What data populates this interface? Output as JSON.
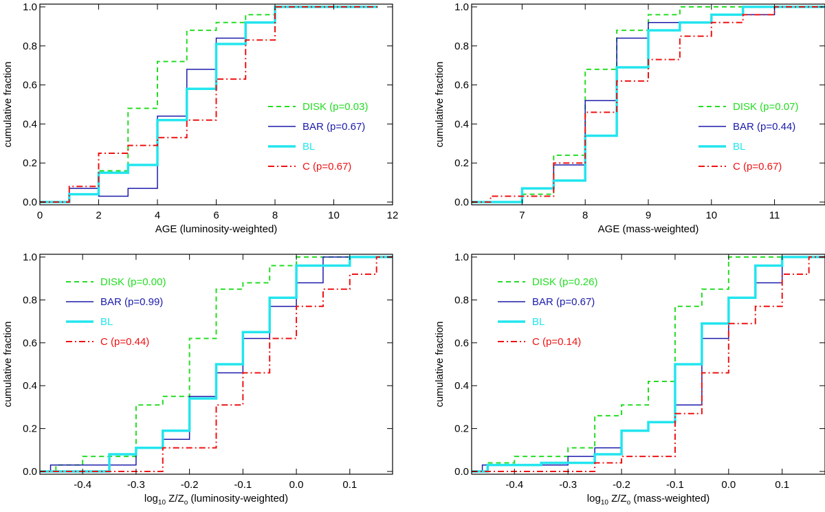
{
  "colors": {
    "disk": "#22dd22",
    "bar": "#1a1aaa",
    "bl": "#22e5ee",
    "c": "#ee1111",
    "axis": "#000000"
  },
  "chart_data": [
    {
      "type": "line",
      "step": true,
      "xlabel": "AGE (luminosity-weighted)",
      "ylabel": "cumulative fraction",
      "xlim": [
        0,
        12
      ],
      "ylim": [
        0,
        1
      ],
      "xticks": [
        0,
        2,
        4,
        6,
        8,
        10,
        12
      ],
      "xtick_labels": [
        "0",
        "2",
        "4",
        "6",
        "8",
        "10",
        "12"
      ],
      "yticks": [
        0,
        0.2,
        0.4,
        0.6,
        0.8,
        1.0
      ],
      "ytick_labels": [
        "0.0",
        "0.2",
        "0.4",
        "0.6",
        "0.8",
        "1.0"
      ],
      "legend_position": "middle-right",
      "series": [
        {
          "key": "disk",
          "name": "DISK (p=0.03)",
          "x": [
            0,
            1,
            1,
            2,
            2,
            3,
            3,
            4,
            4,
            5,
            5,
            6,
            6,
            7,
            7,
            8,
            8,
            11.5
          ],
          "y": [
            0,
            0,
            0.04,
            0.04,
            0.16,
            0.16,
            0.48,
            0.48,
            0.72,
            0.72,
            0.88,
            0.88,
            0.92,
            0.92,
            0.96,
            0.96,
            1.0,
            1.0
          ]
        },
        {
          "key": "bar",
          "name": "BAR (p=0.67)",
          "x": [
            0,
            1,
            1,
            2,
            2,
            3,
            3,
            4,
            4,
            5,
            5,
            6,
            6,
            7,
            7,
            8,
            8,
            11.5
          ],
          "y": [
            0,
            0,
            0.07,
            0.07,
            0.03,
            0.03,
            0.07,
            0.07,
            0.44,
            0.44,
            0.68,
            0.68,
            0.84,
            0.84,
            0.92,
            0.92,
            1.0,
            1.0
          ]
        },
        {
          "key": "bl",
          "name": "BL",
          "x": [
            0,
            1,
            1,
            2,
            2,
            3,
            3,
            4,
            4,
            5,
            5,
            6,
            6,
            7,
            7,
            8,
            8,
            11.5
          ],
          "y": [
            0,
            0,
            0.04,
            0.04,
            0.15,
            0.15,
            0.19,
            0.19,
            0.42,
            0.42,
            0.58,
            0.58,
            0.81,
            0.81,
            0.92,
            0.92,
            1.0,
            1.0
          ]
        },
        {
          "key": "c",
          "name": "C (p=0.67)",
          "x": [
            0,
            1,
            1,
            2,
            2,
            3,
            3,
            4,
            4,
            5,
            5,
            6,
            6,
            7,
            7,
            8,
            8,
            11.5
          ],
          "y": [
            0,
            0,
            0.08,
            0.08,
            0.25,
            0.25,
            0.29,
            0.29,
            0.33,
            0.33,
            0.42,
            0.42,
            0.63,
            0.63,
            0.83,
            0.83,
            1.0,
            1.0
          ]
        }
      ]
    },
    {
      "type": "line",
      "step": true,
      "xlabel": "AGE (mass-weighted)",
      "ylabel": "cumulative fraction",
      "xlim": [
        6.2,
        11.8
      ],
      "ylim": [
        0,
        1
      ],
      "xticks": [
        7,
        8,
        9,
        10,
        11
      ],
      "xtick_labels": [
        "7",
        "8",
        "9",
        "10",
        "11"
      ],
      "yticks": [
        0,
        0.2,
        0.4,
        0.6,
        0.8,
        1.0
      ],
      "ytick_labels": [
        "0.0",
        "0.2",
        "0.4",
        "0.6",
        "0.8",
        "1.0"
      ],
      "legend_position": "middle-right",
      "series": [
        {
          "key": "disk",
          "name": "DISK (p=0.07)",
          "x": [
            6.2,
            7,
            7,
            7.5,
            7.5,
            8,
            8,
            8.5,
            8.5,
            9,
            9,
            9.5,
            9.5,
            11.8
          ],
          "y": [
            0,
            0,
            0.04,
            0.04,
            0.24,
            0.24,
            0.68,
            0.68,
            0.88,
            0.88,
            0.96,
            0.96,
            1.0,
            1.0
          ]
        },
        {
          "key": "bar",
          "name": "BAR (p=0.44)",
          "x": [
            6.2,
            7,
            7,
            7.5,
            7.5,
            8,
            8,
            8.5,
            8.5,
            9,
            9,
            10,
            10,
            11,
            11,
            11.8
          ],
          "y": [
            0,
            0,
            0.07,
            0.07,
            0.19,
            0.19,
            0.52,
            0.52,
            0.84,
            0.84,
            0.92,
            0.92,
            0.96,
            0.96,
            1.0,
            1.0
          ]
        },
        {
          "key": "bl",
          "name": "BL",
          "x": [
            6.2,
            7,
            7,
            7.5,
            7.5,
            8,
            8,
            8.5,
            8.5,
            9,
            9,
            9.5,
            9.5,
            10,
            10,
            10.5,
            10.5,
            11.8
          ],
          "y": [
            0,
            0,
            0.07,
            0.07,
            0.11,
            0.11,
            0.34,
            0.34,
            0.69,
            0.69,
            0.88,
            0.88,
            0.92,
            0.92,
            0.96,
            0.96,
            1.0,
            1.0
          ]
        },
        {
          "key": "c",
          "name": "C (p=0.67)",
          "x": [
            6.2,
            6.5,
            6.5,
            7.5,
            7.5,
            8,
            8,
            8.5,
            8.5,
            9,
            9,
            9.5,
            9.5,
            10,
            10,
            10.5,
            10.5,
            11,
            11,
            11.8
          ],
          "y": [
            0,
            0,
            0.03,
            0.03,
            0.2,
            0.2,
            0.46,
            0.46,
            0.62,
            0.62,
            0.73,
            0.73,
            0.85,
            0.85,
            0.92,
            0.92,
            0.96,
            0.96,
            1.0,
            1.0
          ]
        }
      ]
    },
    {
      "type": "line",
      "step": true,
      "xlabel": "log10 Z/Zo (luminosity-weighted)",
      "xlabel_parts": {
        "log": "log",
        "sub": "10",
        "z": " Z/Z",
        "zsub": "o",
        "rest": " (luminosity-weighted)"
      },
      "ylabel": "cumulative fraction",
      "xlim": [
        -0.48,
        0.18
      ],
      "ylim": [
        0,
        1
      ],
      "xticks": [
        -0.4,
        -0.3,
        -0.2,
        -0.1,
        0.0,
        0.1
      ],
      "xtick_labels": [
        "-0.4",
        "-0.3",
        "-0.2",
        "-0.1",
        "0.0",
        "0.1"
      ],
      "yticks": [
        0,
        0.2,
        0.4,
        0.6,
        0.8,
        1.0
      ],
      "ytick_labels": [
        "0.0",
        "0.2",
        "0.4",
        "0.6",
        "0.8",
        "1.0"
      ],
      "legend_position": "top-left",
      "series": [
        {
          "key": "disk",
          "name": "DISK (p=0.00)",
          "x": [
            -0.48,
            -0.45,
            -0.45,
            -0.4,
            -0.4,
            -0.3,
            -0.3,
            -0.25,
            -0.25,
            -0.2,
            -0.2,
            -0.15,
            -0.15,
            -0.1,
            -0.1,
            -0.05,
            -0.05,
            0.0,
            0.0,
            0.18
          ],
          "y": [
            0,
            0,
            0.03,
            0.03,
            0.07,
            0.07,
            0.31,
            0.31,
            0.35,
            0.35,
            0.62,
            0.62,
            0.85,
            0.85,
            0.88,
            0.88,
            0.96,
            0.96,
            1.0,
            1.0
          ]
        },
        {
          "key": "bar",
          "name": "BAR (p=0.99)",
          "x": [
            -0.48,
            -0.46,
            -0.46,
            -0.3,
            -0.3,
            -0.25,
            -0.25,
            -0.2,
            -0.2,
            -0.15,
            -0.15,
            -0.1,
            -0.1,
            -0.05,
            -0.05,
            0.0,
            0.0,
            0.05,
            0.05,
            0.18
          ],
          "y": [
            0,
            0,
            0.03,
            0.03,
            0.11,
            0.11,
            0.15,
            0.15,
            0.35,
            0.35,
            0.46,
            0.46,
            0.62,
            0.62,
            0.77,
            0.77,
            0.88,
            0.88,
            1.0,
            1.0
          ]
        },
        {
          "key": "bl",
          "name": "BL",
          "x": [
            -0.48,
            -0.35,
            -0.35,
            -0.3,
            -0.3,
            -0.25,
            -0.25,
            -0.2,
            -0.2,
            -0.15,
            -0.15,
            -0.1,
            -0.1,
            -0.05,
            -0.05,
            0.0,
            0.0,
            0.1,
            0.1,
            0.18
          ],
          "y": [
            0,
            0,
            0.08,
            0.08,
            0.11,
            0.11,
            0.19,
            0.19,
            0.34,
            0.34,
            0.5,
            0.5,
            0.65,
            0.65,
            0.81,
            0.81,
            0.96,
            0.96,
            1.0,
            1.0
          ]
        },
        {
          "key": "c",
          "name": "C (p=0.44)",
          "x": [
            -0.48,
            -0.25,
            -0.25,
            -0.15,
            -0.15,
            -0.1,
            -0.1,
            -0.05,
            -0.05,
            0.0,
            0.0,
            0.05,
            0.05,
            0.1,
            0.1,
            0.15,
            0.15,
            0.18
          ],
          "y": [
            0,
            0,
            0.11,
            0.11,
            0.31,
            0.31,
            0.46,
            0.46,
            0.62,
            0.62,
            0.77,
            0.77,
            0.85,
            0.85,
            0.92,
            0.92,
            1.0,
            1.0
          ]
        }
      ]
    },
    {
      "type": "line",
      "step": true,
      "xlabel": "log10 Z/Zo (mass-weighted)",
      "xlabel_parts": {
        "log": "log",
        "sub": "10",
        "z": " Z/Z",
        "zsub": "o",
        "rest": " (mass-weighted)"
      },
      "ylabel": "cumulative fraction",
      "xlim": [
        -0.48,
        0.18
      ],
      "ylim": [
        0,
        1
      ],
      "xticks": [
        -0.4,
        -0.3,
        -0.2,
        -0.1,
        0.0,
        0.1
      ],
      "xtick_labels": [
        "-0.4",
        "-0.3",
        "-0.2",
        "-0.1",
        "0.0",
        "0.1"
      ],
      "yticks": [
        0,
        0.2,
        0.4,
        0.6,
        0.8,
        1.0
      ],
      "ytick_labels": [
        "0.0",
        "0.2",
        "0.4",
        "0.6",
        "0.8",
        "1.0"
      ],
      "legend_position": "top-left",
      "series": [
        {
          "key": "disk",
          "name": "DISK (p=0.26)",
          "x": [
            -0.48,
            -0.45,
            -0.45,
            -0.4,
            -0.4,
            -0.3,
            -0.3,
            -0.25,
            -0.25,
            -0.2,
            -0.2,
            -0.15,
            -0.15,
            -0.1,
            -0.1,
            -0.05,
            -0.05,
            0.0,
            0.0,
            0.18
          ],
          "y": [
            0,
            0,
            0.04,
            0.04,
            0.07,
            0.07,
            0.11,
            0.11,
            0.26,
            0.26,
            0.31,
            0.31,
            0.42,
            0.42,
            0.77,
            0.77,
            0.85,
            0.85,
            1.0,
            1.0
          ]
        },
        {
          "key": "bar",
          "name": "BAR (p=0.67)",
          "x": [
            -0.48,
            -0.46,
            -0.46,
            -0.3,
            -0.3,
            -0.25,
            -0.25,
            -0.2,
            -0.2,
            -0.15,
            -0.15,
            -0.1,
            -0.1,
            -0.05,
            -0.05,
            0.0,
            0.0,
            0.05,
            0.05,
            0.1,
            0.1,
            0.18
          ],
          "y": [
            0,
            0,
            0.03,
            0.03,
            0.07,
            0.07,
            0.11,
            0.11,
            0.19,
            0.19,
            0.23,
            0.23,
            0.31,
            0.31,
            0.62,
            0.62,
            0.81,
            0.81,
            0.88,
            0.88,
            1.0,
            1.0
          ]
        },
        {
          "key": "bl",
          "name": "BL",
          "x": [
            -0.48,
            -0.45,
            -0.45,
            -0.35,
            -0.35,
            -0.3,
            -0.3,
            -0.25,
            -0.25,
            -0.2,
            -0.2,
            -0.15,
            -0.15,
            -0.1,
            -0.1,
            -0.05,
            -0.05,
            0.0,
            0.0,
            0.05,
            0.05,
            0.1,
            0.1,
            0.18
          ],
          "y": [
            0,
            0,
            0.03,
            0.03,
            0.04,
            0.04,
            0.04,
            0.04,
            0.08,
            0.08,
            0.19,
            0.19,
            0.23,
            0.23,
            0.5,
            0.5,
            0.69,
            0.69,
            0.81,
            0.81,
            0.96,
            0.96,
            1.0,
            1.0
          ]
        },
        {
          "key": "c",
          "name": "C (p=0.14)",
          "x": [
            -0.48,
            -0.25,
            -0.25,
            -0.2,
            -0.2,
            -0.1,
            -0.1,
            -0.05,
            -0.05,
            0.0,
            0.0,
            0.05,
            0.05,
            0.1,
            0.1,
            0.15,
            0.15,
            0.18
          ],
          "y": [
            0,
            0,
            0.04,
            0.04,
            0.07,
            0.07,
            0.27,
            0.27,
            0.46,
            0.46,
            0.69,
            0.69,
            0.77,
            0.77,
            0.92,
            0.92,
            1.0,
            1.0
          ]
        }
      ]
    }
  ]
}
